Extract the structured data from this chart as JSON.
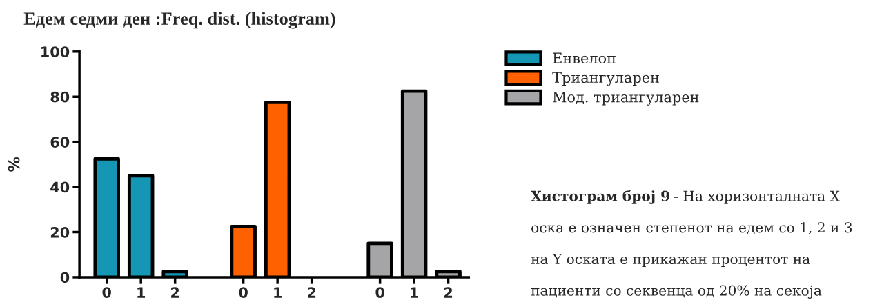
{
  "chart_data": {
    "type": "bar",
    "title": "Едем седми ден :Freq. dist. (histogram)",
    "ylabel": "%",
    "categories": [
      "0",
      "1",
      "2",
      null,
      "0",
      "1",
      "2",
      null,
      "0",
      "1",
      "2"
    ],
    "series": [
      {
        "name": "Енвелоп",
        "color": "#1496b4",
        "values": [
          52.5,
          45,
          2.5,
          null,
          null,
          null,
          null,
          null,
          null,
          null,
          null
        ]
      },
      {
        "name": "Триангуларен",
        "color": "#ff6000",
        "values": [
          null,
          null,
          null,
          null,
          22.5,
          77.5,
          0,
          null,
          null,
          null,
          null
        ]
      },
      {
        "name": "Мод. триангуларен",
        "color": "#a5a5a8",
        "values": [
          null,
          null,
          null,
          null,
          null,
          null,
          null,
          null,
          15,
          82.5,
          2.5
        ]
      }
    ],
    "ylim": [
      0,
      100
    ],
    "yticks": [
      0,
      20,
      40,
      60,
      80,
      100
    ],
    "grid": false,
    "legend": "top right",
    "annotations": [
      "Хистограм број 9",
      "- На хоризонталната X оска е означен степенот на едем со 1, 2 и 3 на Y оската е прикажан процентот на пациенти со секвенца од 20% на секоја"
    ]
  }
}
